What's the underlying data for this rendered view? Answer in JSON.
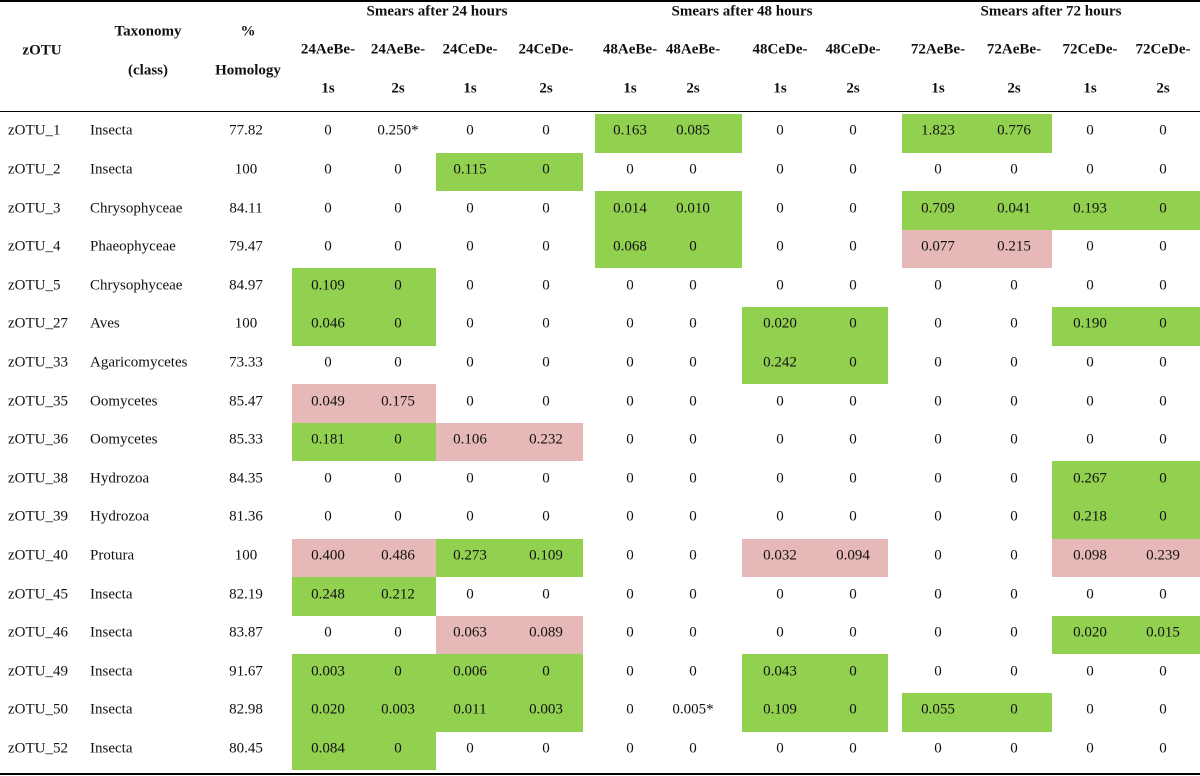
{
  "colors": {
    "green": "#92d050",
    "pink": "#e6b8b7"
  },
  "header": {
    "zotu": "zOTU",
    "taxonomy": [
      "Taxonomy",
      "(class)"
    ],
    "homology": [
      "%",
      "Homology"
    ],
    "groups": [
      "Smears after 24 hours",
      "Smears after 48 hours",
      "Smears after 72 hours"
    ],
    "samples": [
      [
        "24AeBe-",
        "1s"
      ],
      [
        "24AeBe-",
        "2s"
      ],
      [
        "24CeDe-",
        "1s"
      ],
      [
        "24CeDe-",
        "2s"
      ],
      [
        "48AeBe-",
        "1s"
      ],
      [
        "48AeBe-",
        "2s"
      ],
      [
        "48CeDe-",
        "1s"
      ],
      [
        "48CeDe-",
        "2s"
      ],
      [
        "72AeBe-",
        "1s"
      ],
      [
        "72AeBe-",
        "2s"
      ],
      [
        "72CeDe-",
        "1s"
      ],
      [
        "72CeDe-",
        "2s"
      ]
    ]
  },
  "rows": [
    {
      "id": "zOTU_1",
      "taxonomy": "Insecta",
      "homology": "77.82",
      "values": [
        "0",
        "0.250*",
        "0",
        "0",
        "0.163",
        "0.085",
        "0",
        "0",
        "1.823",
        "0.776",
        "0",
        "0"
      ],
      "hl": [
        "",
        "",
        "",
        "",
        "g",
        "g",
        "",
        "",
        "g",
        "g",
        "",
        ""
      ]
    },
    {
      "id": "zOTU_2",
      "taxonomy": "Insecta",
      "homology": "100",
      "values": [
        "0",
        "0",
        "0.115",
        "0",
        "0",
        "0",
        "0",
        "0",
        "0",
        "0",
        "0",
        "0"
      ],
      "hl": [
        "",
        "",
        "g",
        "g",
        "",
        "",
        "",
        "",
        "",
        "",
        "",
        ""
      ]
    },
    {
      "id": "zOTU_3",
      "taxonomy": "Chrysophyceae",
      "homology": "84.11",
      "values": [
        "0",
        "0",
        "0",
        "0",
        "0.014",
        "0.010",
        "0",
        "0",
        "0.709",
        "0.041",
        "0.193",
        "0"
      ],
      "hl": [
        "",
        "",
        "",
        "",
        "g",
        "g",
        "",
        "",
        "g",
        "g",
        "g",
        "g"
      ]
    },
    {
      "id": "zOTU_4",
      "taxonomy": "Phaeophyceae",
      "homology": "79.47",
      "values": [
        "0",
        "0",
        "0",
        "0",
        "0.068",
        "0",
        "0",
        "0",
        "0.077",
        "0.215",
        "0",
        "0"
      ],
      "hl": [
        "",
        "",
        "",
        "",
        "g",
        "g",
        "",
        "",
        "p",
        "p",
        "",
        ""
      ]
    },
    {
      "id": "zOTU_5",
      "taxonomy": "Chrysophyceae",
      "homology": "84.97",
      "values": [
        "0.109",
        "0",
        "0",
        "0",
        "0",
        "0",
        "0",
        "0",
        "0",
        "0",
        "0",
        "0"
      ],
      "hl": [
        "g",
        "g",
        "",
        "",
        "",
        "",
        "",
        "",
        "",
        "",
        "",
        ""
      ]
    },
    {
      "id": "zOTU_27",
      "taxonomy": "Aves",
      "homology": "100",
      "values": [
        "0.046",
        "0",
        "0",
        "0",
        "0",
        "0",
        "0.020",
        "0",
        "0",
        "0",
        "0.190",
        "0"
      ],
      "hl": [
        "g",
        "g",
        "",
        "",
        "",
        "",
        "g",
        "g",
        "",
        "",
        "g",
        "g"
      ]
    },
    {
      "id": "zOTU_33",
      "taxonomy": "Agaricomycetes",
      "homology": "73.33",
      "values": [
        "0",
        "0",
        "0",
        "0",
        "0",
        "0",
        "0.242",
        "0",
        "0",
        "0",
        "0",
        "0"
      ],
      "hl": [
        "",
        "",
        "",
        "",
        "",
        "",
        "g",
        "g",
        "",
        "",
        "",
        ""
      ]
    },
    {
      "id": "zOTU_35",
      "taxonomy": "Oomycetes",
      "homology": "85.47",
      "values": [
        "0.049",
        "0.175",
        "0",
        "0",
        "0",
        "0",
        "0",
        "0",
        "0",
        "0",
        "0",
        "0"
      ],
      "hl": [
        "p",
        "p",
        "",
        "",
        "",
        "",
        "",
        "",
        "",
        "",
        "",
        ""
      ]
    },
    {
      "id": "zOTU_36",
      "taxonomy": "Oomycetes",
      "homology": "85.33",
      "values": [
        "0.181",
        "0",
        "0.106",
        "0.232",
        "0",
        "0",
        "0",
        "0",
        "0",
        "0",
        "0",
        "0"
      ],
      "hl": [
        "g",
        "g",
        "p",
        "p",
        "",
        "",
        "",
        "",
        "",
        "",
        "",
        ""
      ]
    },
    {
      "id": "zOTU_38",
      "taxonomy": "Hydrozoa",
      "homology": "84.35",
      "values": [
        "0",
        "0",
        "0",
        "0",
        "0",
        "0",
        "0",
        "0",
        "0",
        "0",
        "0.267",
        "0"
      ],
      "hl": [
        "",
        "",
        "",
        "",
        "",
        "",
        "",
        "",
        "",
        "",
        "g",
        "g"
      ]
    },
    {
      "id": "zOTU_39",
      "taxonomy": "Hydrozoa",
      "homology": "81.36",
      "values": [
        "0",
        "0",
        "0",
        "0",
        "0",
        "0",
        "0",
        "0",
        "0",
        "0",
        "0.218",
        "0"
      ],
      "hl": [
        "",
        "",
        "",
        "",
        "",
        "",
        "",
        "",
        "",
        "",
        "g",
        "g"
      ]
    },
    {
      "id": "zOTU_40",
      "taxonomy": "Protura",
      "homology": "100",
      "values": [
        "0.400",
        "0.486",
        "0.273",
        "0.109",
        "0",
        "0",
        "0.032",
        "0.094",
        "0",
        "0",
        "0.098",
        "0.239"
      ],
      "hl": [
        "p",
        "p",
        "g",
        "g",
        "",
        "",
        "p",
        "p",
        "",
        "",
        "p",
        "p"
      ]
    },
    {
      "id": "zOTU_45",
      "taxonomy": "Insecta",
      "homology": "82.19",
      "values": [
        "0.248",
        "0.212",
        "0",
        "0",
        "0",
        "0",
        "0",
        "0",
        "0",
        "0",
        "0",
        "0"
      ],
      "hl": [
        "g",
        "g",
        "",
        "",
        "",
        "",
        "",
        "",
        "",
        "",
        "",
        ""
      ]
    },
    {
      "id": "zOTU_46",
      "taxonomy": "Insecta",
      "homology": "83.87",
      "values": [
        "0",
        "0",
        "0.063",
        "0.089",
        "0",
        "0",
        "0",
        "0",
        "0",
        "0",
        "0.020",
        "0.015"
      ],
      "hl": [
        "",
        "",
        "p",
        "p",
        "",
        "",
        "",
        "",
        "",
        "",
        "g",
        "g"
      ]
    },
    {
      "id": "zOTU_49",
      "taxonomy": "Insecta",
      "homology": "91.67",
      "values": [
        "0.003",
        "0",
        "0.006",
        "0",
        "0",
        "0",
        "0.043",
        "0",
        "0",
        "0",
        "0",
        "0"
      ],
      "hl": [
        "g",
        "g",
        "g",
        "g",
        "",
        "",
        "g",
        "g",
        "",
        "",
        "",
        ""
      ]
    },
    {
      "id": "zOTU_50",
      "taxonomy": "Insecta",
      "homology": "82.98",
      "values": [
        "0.020",
        "0.003",
        "0.011",
        "0.003",
        "0",
        "0.005*",
        "0.109",
        "0",
        "0.055",
        "0",
        "0",
        "0"
      ],
      "hl": [
        "g",
        "g",
        "g",
        "g",
        "",
        "",
        "g",
        "g",
        "g",
        "g",
        "",
        ""
      ]
    },
    {
      "id": "zOTU_52",
      "taxonomy": "Insecta",
      "homology": "80.45",
      "values": [
        "0.084",
        "0",
        "0",
        "0",
        "0",
        "0",
        "0",
        "0",
        "0",
        "0",
        "0",
        "0"
      ],
      "hl": [
        "g",
        "g",
        "",
        "",
        "",
        "",
        "",
        "",
        "",
        "",
        "",
        ""
      ]
    }
  ]
}
